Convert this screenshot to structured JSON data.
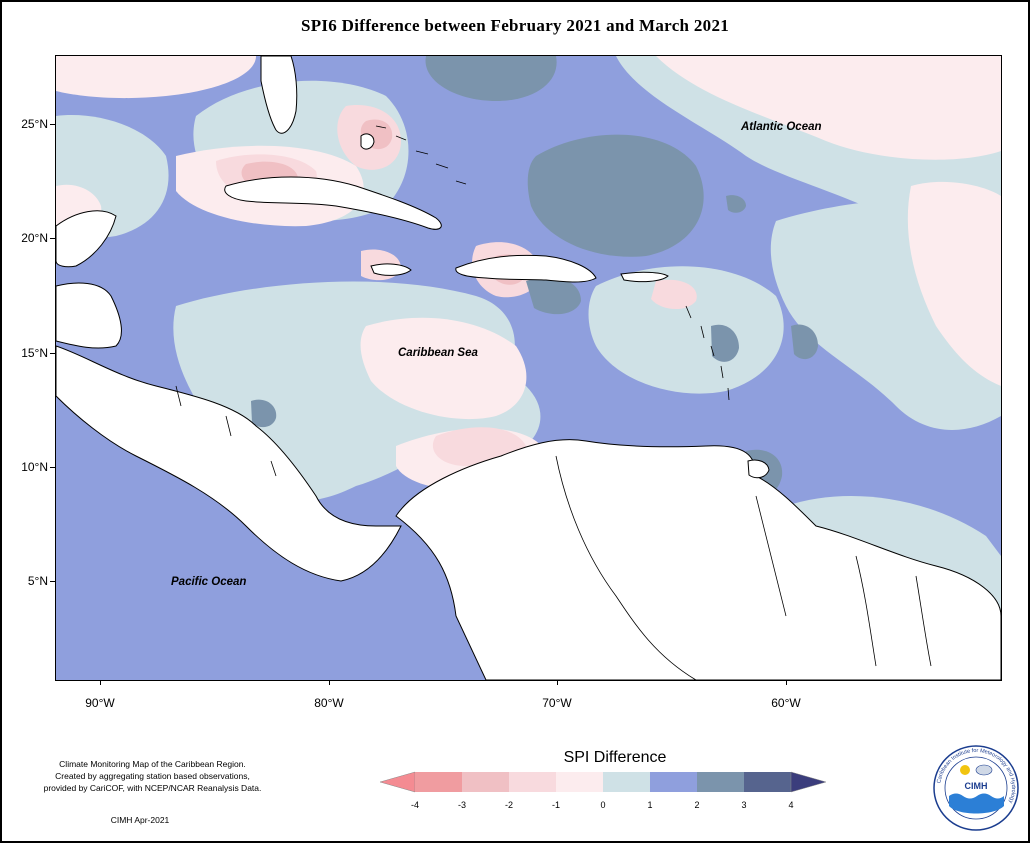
{
  "title": "SPI6 Difference between February 2021 and March 2021",
  "map": {
    "labels": {
      "atlantic": "Atlantic Ocean",
      "caribbean": "Caribbean Sea",
      "pacific": "Pacific Ocean"
    },
    "lat_ticks": [
      "25°N",
      "20°N",
      "15°N",
      "10°N",
      "5°N"
    ],
    "lon_ticks": [
      "90°W",
      "80°W",
      "70°W",
      "60°W"
    ]
  },
  "legend": {
    "title": "SPI Difference",
    "ticks": [
      "-4",
      "-3",
      "-2",
      "-1",
      "0",
      "1",
      "2",
      "3",
      "4"
    ],
    "colors": [
      "#f09ca0",
      "#f0c0c4",
      "#f8dade",
      "#fcecee",
      "#cfe1e6",
      "#8f9fdd",
      "#7b94ac",
      "#56648e"
    ],
    "low_arrow_color": "#f48b92",
    "high_arrow_color": "#3b3d7c"
  },
  "notes": {
    "line1": "Climate Monitoring Map of the Caribbean Region.",
    "line2": "Created by aggregating station based observations,",
    "line3": "provided by CariCOF, with NCEP/NCAR Reanalysis Data.",
    "date": "CIMH Apr-2021"
  },
  "logo": {
    "name": "CIMH",
    "ring_text": "Caribbean Institute for Meteorology and Hydrology"
  }
}
